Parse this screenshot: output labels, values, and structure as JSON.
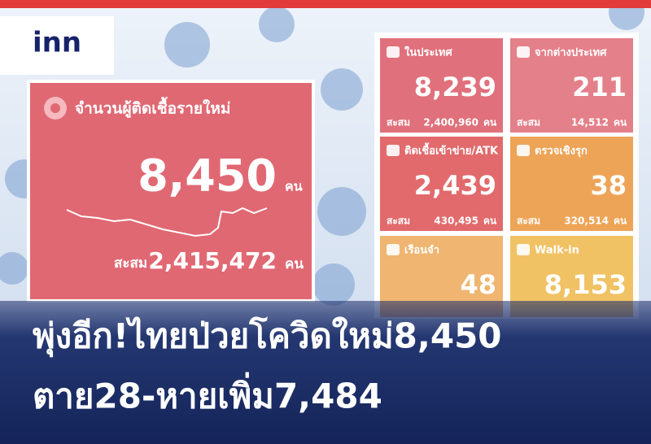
{
  "logo": "inn",
  "main_card": {
    "title": "จำนวนผู้ติดเชื้อรายใหม่",
    "value": "8,450",
    "unit": "คน",
    "cumulative_label": "สะสม",
    "cumulative_value": "2,415,472",
    "cumulative_unit": "คน"
  },
  "cards": [
    {
      "title": "ในประเทศ",
      "value": "8,239",
      "cumulative_label": "สะสม",
      "cumulative_value": "2,400,960",
      "cumulative_unit": "คน"
    },
    {
      "title": "จากต่างประเทศ",
      "value": "211",
      "cumulative_label": "สะสม",
      "cumulative_value": "14,512",
      "cumulative_unit": "คน"
    },
    {
      "title": "ติดเชื้อเข้าข่าย/ATK",
      "value": "2,439",
      "cumulative_label": "สะสม",
      "cumulative_value": "430,495",
      "cumulative_unit": "คน"
    },
    {
      "title": "ตรวจเชิงรุก",
      "value": "38",
      "cumulative_label": "สะสม",
      "cumulative_value": "320,514",
      "cumulative_unit": "คน"
    },
    {
      "title": "เรือนจำ",
      "value": "48"
    },
    {
      "title": "Walk-in",
      "value": "8,153"
    }
  ],
  "headline": [
    "พุ่งอีก!ไทยป่วยโควิดใหม่8,450",
    "ตาย28-หายเพิ่ม7,484"
  ]
}
